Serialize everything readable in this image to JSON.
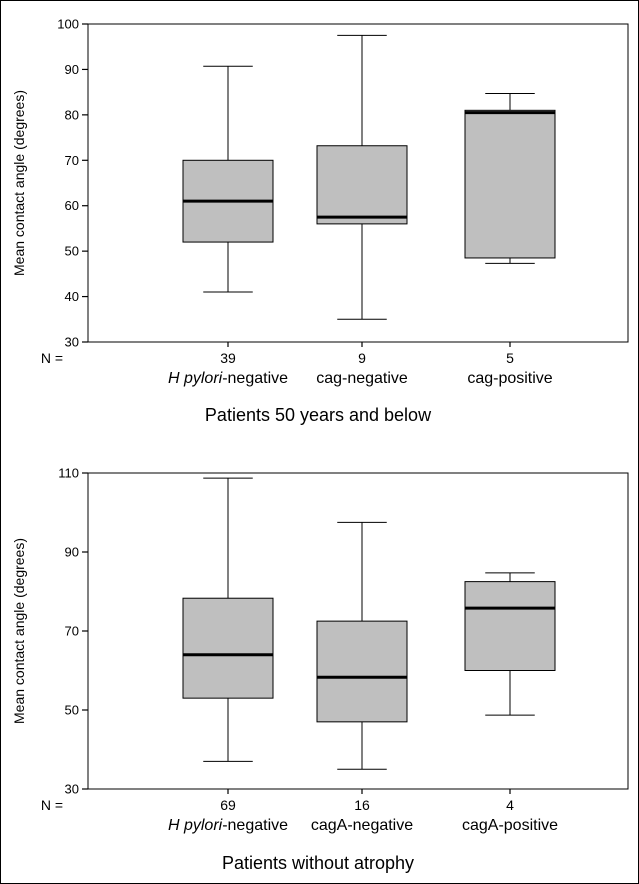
{
  "chart_data": [
    {
      "type": "box",
      "title": "Patients 50 years and below",
      "ylabel": "Mean contact angle (degrees)",
      "ylim": [
        30,
        100
      ],
      "yticks": [
        30,
        40,
        50,
        60,
        70,
        80,
        90,
        100
      ],
      "n_label": "N =",
      "categories": [
        {
          "parts": [
            {
              "text": "H pylori",
              "italic": true
            },
            {
              "text": "-negative",
              "italic": false
            }
          ]
        },
        {
          "parts": [
            {
              "text": "cag-negative",
              "italic": false
            }
          ]
        },
        {
          "parts": [
            {
              "text": "cag-positive",
              "italic": false
            }
          ]
        }
      ],
      "n": [
        "39",
        "9",
        "5"
      ],
      "boxes": [
        {
          "whisker_low": 41,
          "q1": 52,
          "median": 61,
          "q3": 70,
          "whisker_high": 90.7
        },
        {
          "whisker_low": 35,
          "q1": 56,
          "median": 57.5,
          "q3": 73.2,
          "whisker_high": 97.5
        },
        {
          "whisker_low": 47.3,
          "q1": 48.5,
          "median": 80.5,
          "q3": 81,
          "whisker_high": 84.7
        }
      ],
      "box_color": "#bfbfbf"
    },
    {
      "type": "box",
      "title": "Patients without atrophy",
      "ylabel": "Mean contact angle (degrees)",
      "ylim": [
        30,
        110
      ],
      "yticks": [
        30,
        50,
        70,
        90,
        110
      ],
      "n_label": "N =",
      "categories": [
        {
          "parts": [
            {
              "text": "H pylori",
              "italic": true
            },
            {
              "text": "-negative",
              "italic": false
            }
          ]
        },
        {
          "parts": [
            {
              "text": "cagA-negative",
              "italic": false
            }
          ]
        },
        {
          "parts": [
            {
              "text": "cagA-positive",
              "italic": false
            }
          ]
        }
      ],
      "n": [
        "69",
        "16",
        "4"
      ],
      "boxes": [
        {
          "whisker_low": 37,
          "q1": 53,
          "median": 64,
          "q3": 78.3,
          "whisker_high": 108.7
        },
        {
          "whisker_low": 35,
          "q1": 47,
          "median": 58.3,
          "q3": 72.5,
          "whisker_high": 97.5
        },
        {
          "whisker_low": 48.7,
          "q1": 60,
          "median": 75.8,
          "q3": 82.5,
          "whisker_high": 84.7
        }
      ],
      "box_color": "#bfbfbf"
    }
  ]
}
